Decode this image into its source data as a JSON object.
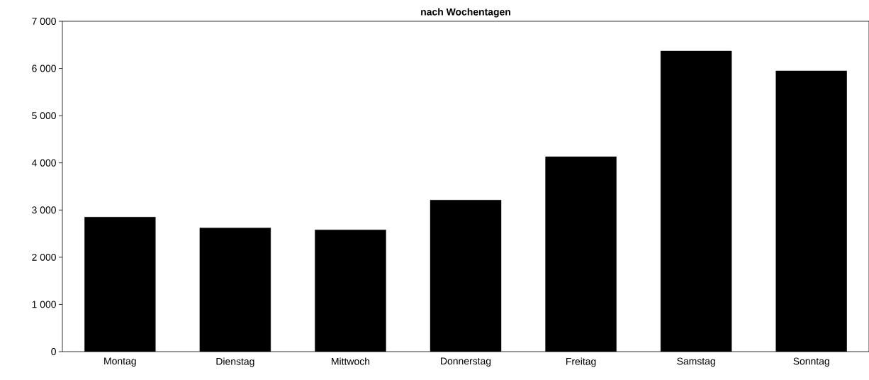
{
  "chart_data": {
    "type": "bar",
    "title": "nach Wochentagen",
    "categories": [
      "Montag",
      "Dienstag",
      "Mittwoch",
      "Donnerstag",
      "Freitag",
      "Samstag",
      "Sonntag"
    ],
    "values": [
      2850,
      2620,
      2580,
      3210,
      4130,
      6370,
      5950
    ],
    "color": "#000000",
    "ylim": [
      0,
      7000
    ],
    "yticks": [
      {
        "value": 0,
        "label": "0"
      },
      {
        "value": 1000,
        "label": "1 000"
      },
      {
        "value": 2000,
        "label": "2 000"
      },
      {
        "value": 3000,
        "label": "3 000"
      },
      {
        "value": 4000,
        "label": "4 000"
      },
      {
        "value": 5000,
        "label": "5 000"
      },
      {
        "value": 6000,
        "label": "6 000"
      },
      {
        "value": 7000,
        "label": "7 000"
      }
    ],
    "grid": false
  }
}
